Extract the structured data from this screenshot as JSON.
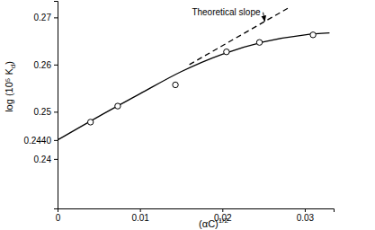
{
  "chart_data": {
    "type": "line",
    "x_label": "(αC)1/2",
    "y_label": "log (10⁵ Kd)",
    "xlim": [
      0,
      0.0335
    ],
    "ylim": [
      0.2295,
      0.2735
    ],
    "xticks": [
      0,
      0.01,
      0.02,
      0.03
    ],
    "yticks": [
      0.24,
      {
        "value": 0.244,
        "label": "0.2440"
      },
      0.25,
      0.26,
      0.27
    ],
    "series": [
      {
        "type": "line",
        "line_style": "solid",
        "color": "#000000",
        "x": [
          0,
          0.005,
          0.01,
          0.015,
          0.02,
          0.025,
          0.03,
          0.033
        ],
        "values": [
          0.244,
          0.249,
          0.2538,
          0.2585,
          0.2622,
          0.2648,
          0.2663,
          0.2667
        ]
      },
      {
        "type": "line",
        "line_style": "dashed",
        "color": "#000000",
        "x": [
          0.016,
          0.028
        ],
        "values": [
          0.26,
          0.272
        ]
      },
      {
        "type": "scatter",
        "marker": "circle",
        "color": "#000000",
        "x": [
          0.004,
          0.0073,
          0.0143,
          0.0205,
          0.0245,
          0.031
        ],
        "values": [
          0.2478,
          0.2512,
          0.2557,
          0.2627,
          0.2647,
          0.2663
        ]
      }
    ],
    "annotations": [
      {
        "text": "Theoretical slope",
        "x": 0.0163,
        "y": 0.2705
      }
    ]
  }
}
